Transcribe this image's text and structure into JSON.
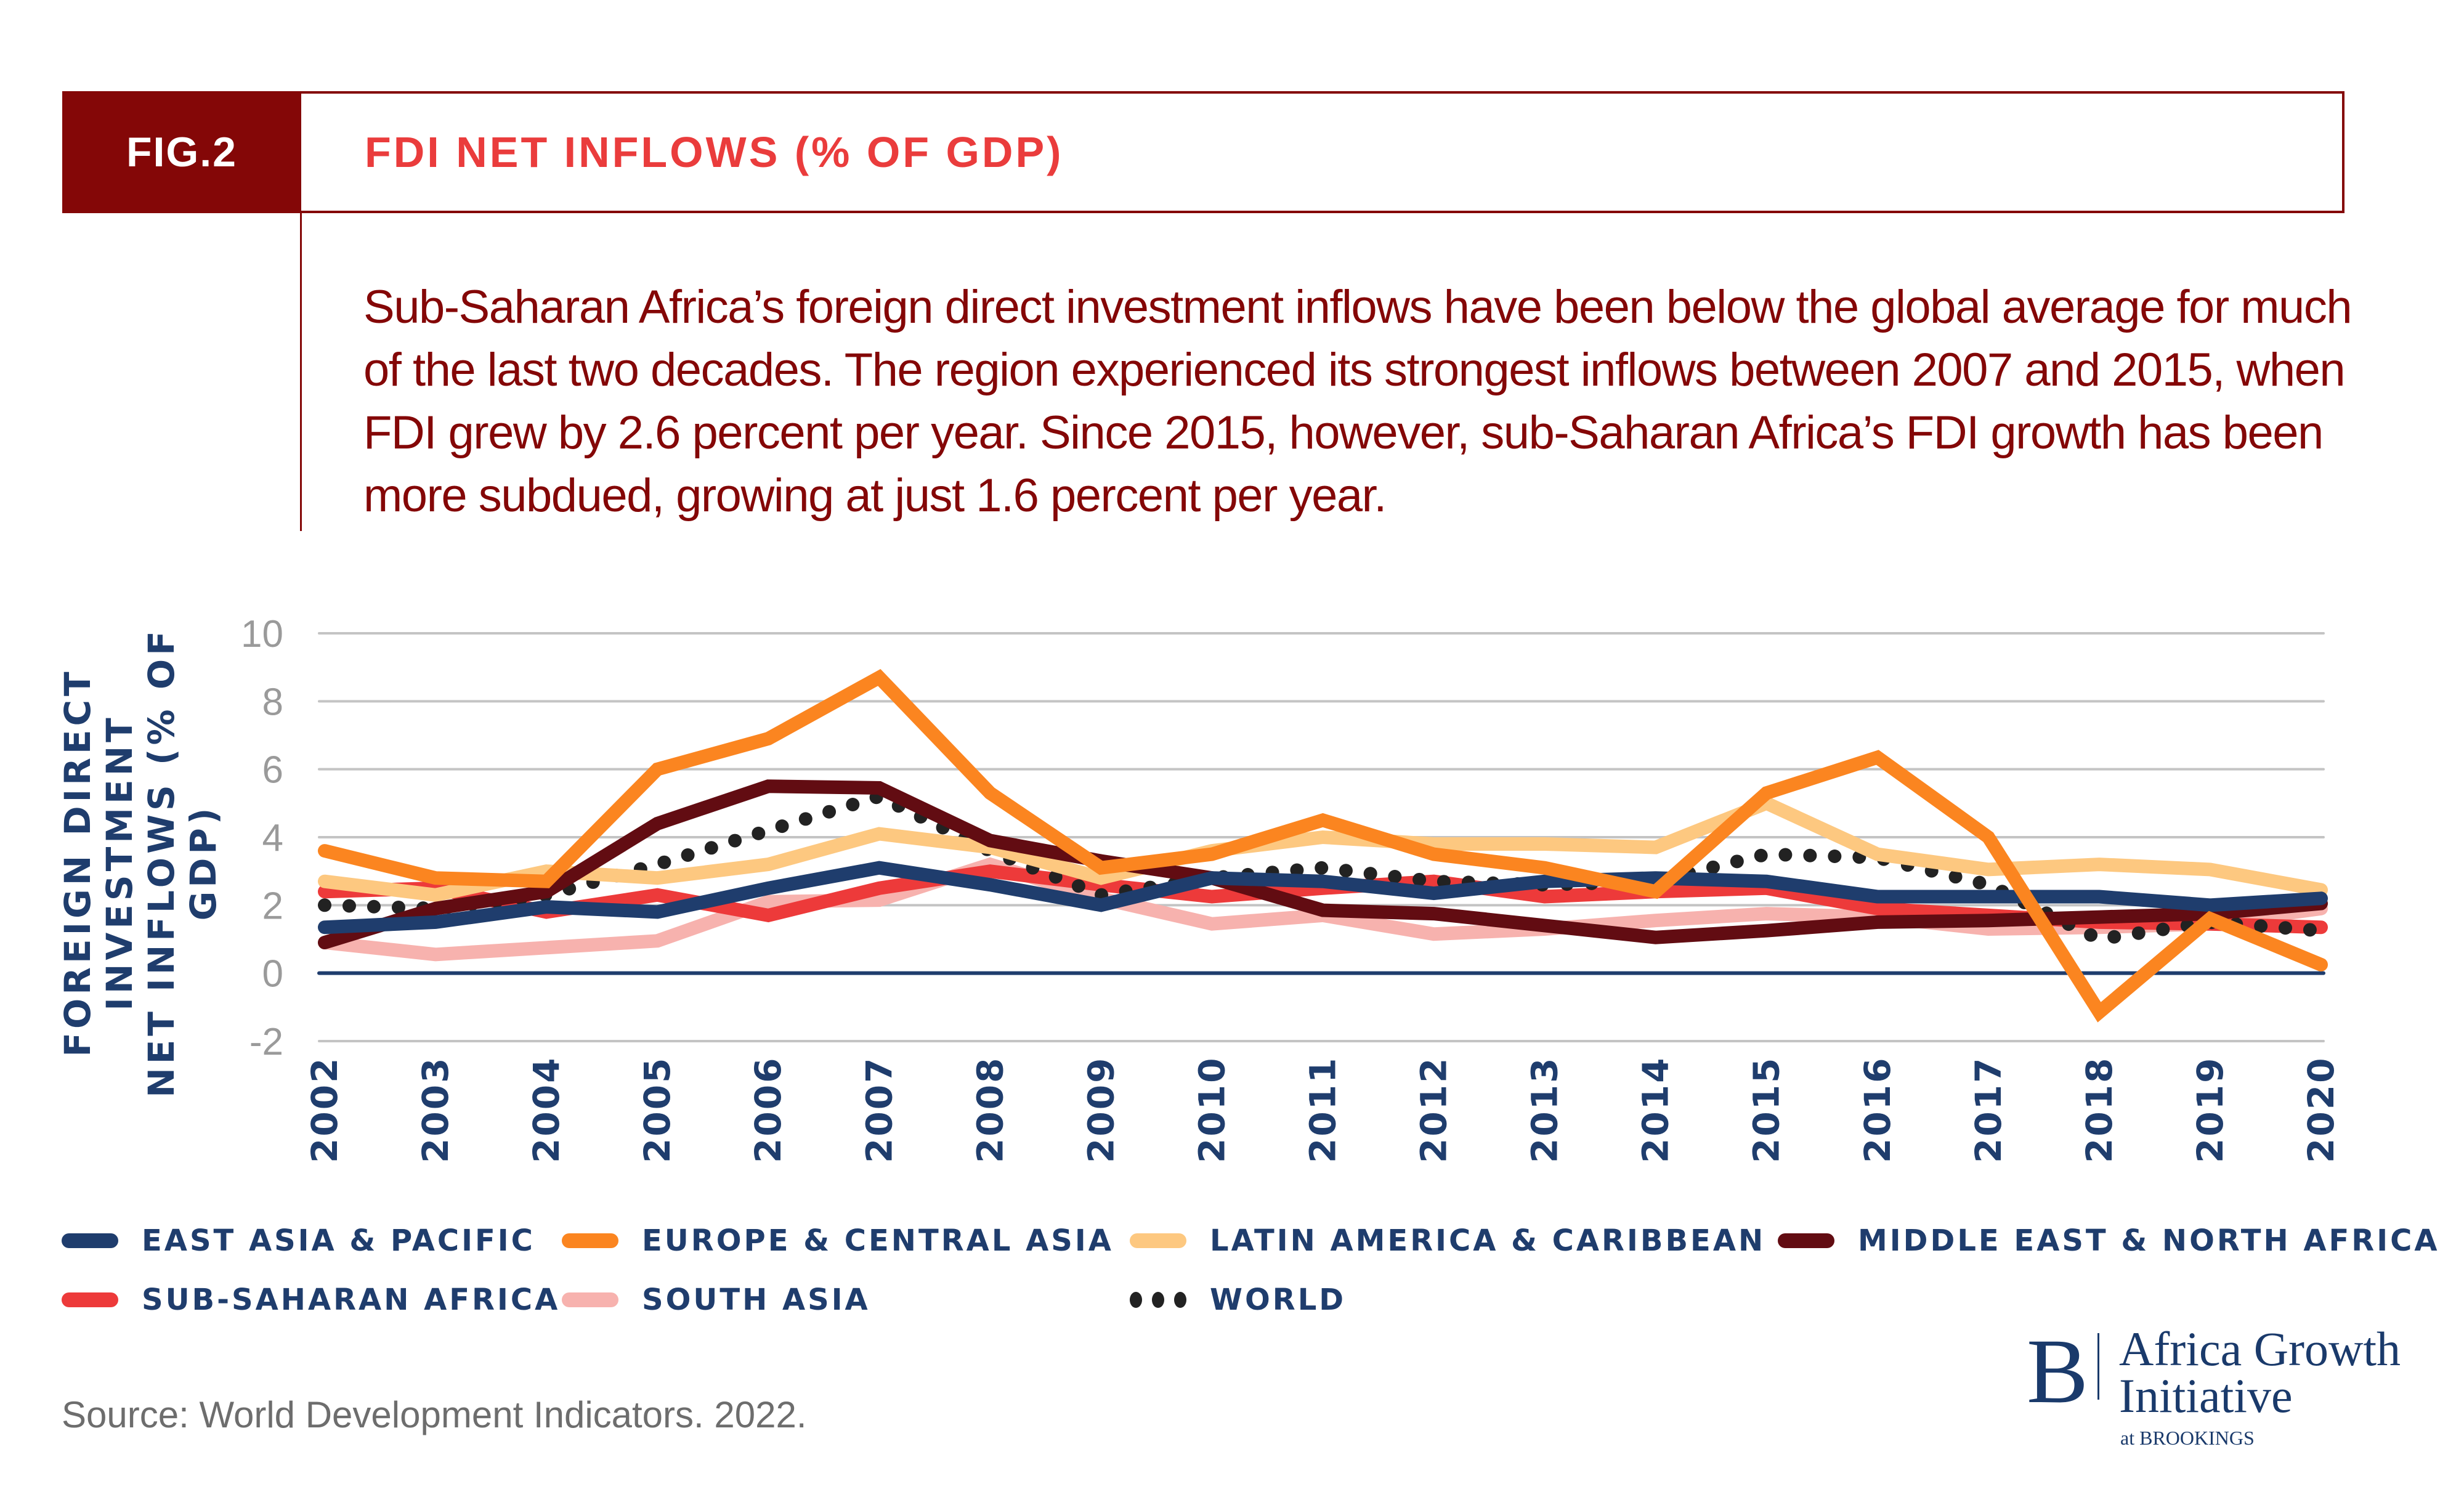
{
  "header": {
    "fig_label": "FIG.2",
    "title": "FDI NET INFLOWS (% OF GDP)"
  },
  "description": "Sub-Saharan Africa’s foreign direct investment inflows have been below the global average for much of the last two decades. The region experienced its strongest inflows between 2007 and 2015, when FDI grew by 2.6 percent per year. Since 2015, however, sub-Saharan Africa’s FDI growth has been more subdued, growing at just 1.6 percent per year.",
  "source": "Source: World Development Indicators. 2022.",
  "logo": {
    "mark": "B",
    "line1": "Africa Growth",
    "line2": "Initiative",
    "line3": "at BROOKINGS"
  },
  "colors": {
    "brand_dark_red": "#840707",
    "title_red": "#ea3c3c",
    "axis_navy": "#1f3d6d"
  },
  "chart_data": {
    "type": "line",
    "title": "FDI NET INFLOWS (% OF GDP)",
    "xlabel": "",
    "ylabel": "FOREIGN DIRECT INVESTMENT NET INFLOWS (% OF GDP)",
    "ylabel_lines": [
      "FOREIGN DIRECT INVESTMENT",
      "NET INFLOWS (% OF GDP)"
    ],
    "ylim": [
      -2,
      10
    ],
    "yticks": [
      10,
      8,
      6,
      4,
      2,
      0,
      -2
    ],
    "grid": true,
    "legend_position": "bottom",
    "x": [
      "2002",
      "2003",
      "2004",
      "2005",
      "2006",
      "2007",
      "2008",
      "2009",
      "2010",
      "2011",
      "2012",
      "2013",
      "2014",
      "2015",
      "2016",
      "2017",
      "2018",
      "2019",
      "2020"
    ],
    "series": [
      {
        "name": "EAST ASIA & PACIFIC",
        "color": "#1f3d6d",
        "style": "solid",
        "values": [
          1.35,
          1.5,
          1.95,
          1.8,
          2.5,
          3.1,
          2.6,
          2.0,
          2.8,
          2.7,
          2.35,
          2.7,
          2.8,
          2.7,
          2.25,
          2.25,
          2.25,
          2.0,
          2.2
        ]
      },
      {
        "name": "EUROPE & CENTRAL ASIA",
        "color": "#fb8520",
        "style": "solid",
        "values": [
          3.6,
          2.8,
          2.7,
          6.0,
          6.9,
          8.7,
          5.3,
          3.1,
          3.5,
          4.5,
          3.5,
          3.1,
          2.4,
          5.3,
          6.35,
          4.0,
          -1.15,
          1.6,
          0.25
        ]
      },
      {
        "name": "LATIN AMERICA & CARIBBEAN",
        "color": "#fdc880",
        "style": "solid",
        "values": [
          2.7,
          2.3,
          3.0,
          2.8,
          3.2,
          4.1,
          3.7,
          2.8,
          3.6,
          4.0,
          3.8,
          3.8,
          3.7,
          5.0,
          3.5,
          3.05,
          3.2,
          3.05,
          2.45
        ]
      },
      {
        "name": "MIDDLE EAST & NORTH AFRICA",
        "color": "#620c12",
        "style": "solid",
        "values": [
          0.9,
          1.9,
          2.4,
          4.4,
          5.5,
          5.45,
          3.9,
          3.3,
          2.8,
          1.85,
          1.75,
          1.4,
          1.05,
          1.25,
          1.5,
          1.55,
          1.65,
          1.75,
          2.05
        ]
      },
      {
        "name": "SUB-SAHARAN AFRICA",
        "color": "#ed3a3a",
        "style": "solid",
        "values": [
          2.4,
          2.5,
          1.8,
          2.3,
          1.7,
          2.5,
          3.0,
          2.6,
          2.25,
          2.5,
          2.7,
          2.25,
          2.4,
          2.5,
          1.9,
          1.7,
          1.5,
          1.45,
          1.35
        ]
      },
      {
        "name": "SOUTH ASIA",
        "color": "#f7b2ae",
        "style": "solid",
        "values": [
          0.9,
          0.55,
          0.75,
          0.95,
          2.1,
          2.15,
          3.2,
          2.2,
          1.45,
          1.7,
          1.15,
          1.3,
          1.55,
          1.75,
          1.65,
          1.3,
          1.35,
          1.45,
          1.9
        ]
      },
      {
        "name": "WORLD",
        "color": "#222222",
        "style": "dotted",
        "values": [
          2.0,
          1.9,
          2.3,
          3.2,
          4.2,
          5.2,
          3.6,
          2.3,
          2.8,
          3.1,
          2.7,
          2.6,
          2.7,
          3.5,
          3.4,
          2.6,
          1.0,
          1.5,
          1.25
        ]
      }
    ],
    "legend_rows": [
      [
        "EAST ASIA & PACIFIC",
        "EUROPE & CENTRAL ASIA",
        "LATIN AMERICA & CARIBBEAN",
        "MIDDLE EAST & NORTH AFRICA"
      ],
      [
        "SUB-SAHARAN AFRICA",
        "SOUTH ASIA",
        "WORLD"
      ]
    ]
  }
}
